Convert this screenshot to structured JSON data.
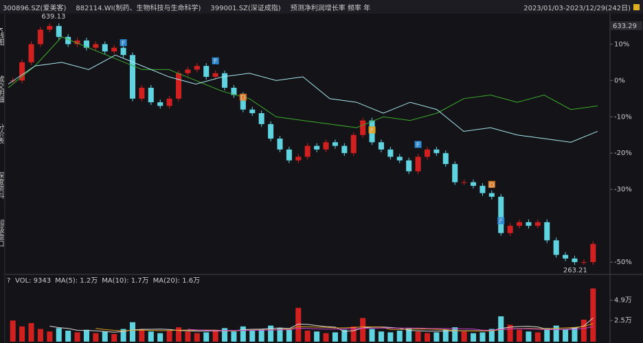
{
  "header": {
    "tabs": [
      "300896.SZ(爱美客)",
      "882114.WI(制药、生物科技与生命科学)",
      "399001.SZ(深证成指)",
      "预测净利润增长率 频率 年"
    ],
    "range": "2023/01/03-2023/12/29(242日)"
  },
  "sidebar": [
    "K线图",
    "成交明细",
    "分价表",
    "深度资料",
    "超级盘口"
  ],
  "price_chart": {
    "type": "candlestick",
    "current_price": "633.29",
    "high_label": "639.13",
    "low_label": "263.21",
    "ylim": [
      -53,
      18
    ],
    "yticks": [
      {
        "value": 10,
        "label": "10%"
      },
      {
        "value": 0,
        "label": "0%"
      },
      {
        "value": -10,
        "label": "-10%"
      },
      {
        "value": -20,
        "label": "-20%"
      },
      {
        "value": -30,
        "label": "-30%"
      },
      {
        "value": -50,
        "label": "-50%"
      }
    ],
    "closes": [
      0,
      5,
      10,
      14,
      15,
      12,
      10,
      11,
      9,
      10,
      8,
      9,
      7,
      -5,
      -2,
      -6,
      -7,
      -5,
      2,
      3,
      4,
      1,
      2,
      -2,
      -4,
      -8,
      -9,
      -12,
      -16,
      -19,
      -22,
      -21,
      -18,
      -19,
      -17,
      -18,
      -20,
      -15,
      -11,
      -17,
      -19,
      -21,
      -22,
      -25,
      -21,
      -19,
      -20,
      -23,
      -28,
      -28,
      -29,
      -31,
      -32,
      -42,
      -40,
      -39,
      -40,
      -39,
      -44,
      -48,
      -49,
      -50,
      -50,
      -45
    ],
    "up_color": "#d02020",
    "down_color": "#5fd3e0",
    "series": [
      {
        "name": "882114.WI",
        "color": "#3cae2c",
        "values": [
          -2,
          4,
          12,
          9,
          6,
          3,
          3,
          0,
          -3,
          -5,
          -10,
          -11,
          -12,
          -13,
          -10,
          -11,
          -9,
          -5,
          -4,
          -6,
          -4,
          -8,
          -7
        ]
      },
      {
        "name": "399001.SZ",
        "color": "#a8e8f0",
        "values": [
          -1,
          4,
          5,
          3,
          7,
          4,
          1,
          -1,
          1,
          2,
          0,
          1,
          -5,
          -6,
          -9,
          -6,
          -8,
          -14,
          -13,
          -15,
          -16,
          -17,
          -14
        ]
      }
    ],
    "markers": [
      {
        "label": "F",
        "at": 12,
        "color": "#2a8ad4"
      },
      {
        "label": "F",
        "at": 22,
        "color": "#2a8ad4"
      },
      {
        "label": "D",
        "at": 25,
        "color": "#e07a20"
      },
      {
        "label": "F",
        "at": 39,
        "color": "#e0a020"
      },
      {
        "label": "F",
        "at": 44,
        "color": "#2a8ad4"
      },
      {
        "label": "D",
        "at": 52,
        "color": "#e07a20"
      },
      {
        "label": "F",
        "at": 53,
        "color": "#2a8ad4"
      }
    ]
  },
  "volume_chart": {
    "type": "bar",
    "legend": [
      "VOL: 9343",
      "MA(5): 1.2万",
      "MA(10): 1.7万",
      "MA(20): 1.6万"
    ],
    "legend_colors": [
      "#dddddd",
      "#dddddd",
      "#e0a020",
      "#d040d0"
    ],
    "ylim": [
      0,
      6.5
    ],
    "yticks": [
      {
        "value": 4.9,
        "label": "4.9万"
      },
      {
        "value": 2.5,
        "label": "2.5万"
      }
    ],
    "values": [
      2.5,
      1.8,
      2.2,
      1.5,
      1.2,
      1.6,
      1.3,
      1.1,
      1.4,
      1.0,
      1.2,
      0.9,
      1.5,
      2.3,
      1.4,
      1.2,
      1.0,
      1.3,
      1.7,
      1.2,
      1.0,
      1.1,
      1.4,
      1.6,
      1.2,
      1.8,
      1.3,
      1.5,
      1.9,
      1.6,
      1.4,
      4.0,
      1.3,
      1.2,
      1.0,
      1.1,
      1.4,
      1.8,
      2.8,
      1.5,
      1.2,
      1.1,
      1.3,
      1.6,
      1.2,
      1.0,
      1.1,
      1.4,
      1.7,
      1.2,
      1.0,
      1.1,
      1.5,
      3.0,
      2.0,
      1.4,
      1.2,
      1.1,
      1.6,
      1.9,
      1.5,
      1.7,
      2.6,
      6.3
    ]
  }
}
